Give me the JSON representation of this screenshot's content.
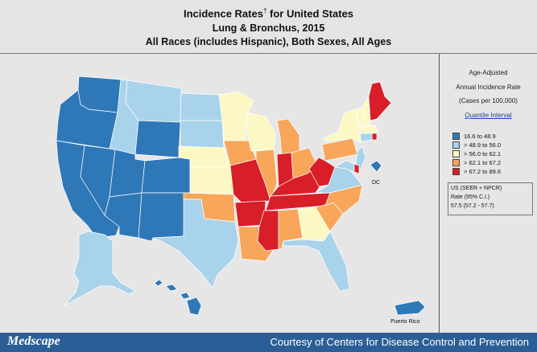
{
  "header": {
    "title_main": "Incidence Rates",
    "title_mark": "†",
    "title_tail": " for United States",
    "subtitle1": "Lung & Bronchus, 2015",
    "subtitle2": "All Races (includes Hispanic), Both Sexes, All Ages"
  },
  "legend": {
    "line1": "Age-Adjusted",
    "line2": "Annual Incidence Rate",
    "line3": "(Cases per 100,000)",
    "link": "Quantile Interval",
    "items": [
      {
        "label": "16.6  to  48.9",
        "color": "#2f78b8"
      },
      {
        "label": "> 48.9  to  56.0",
        "color": "#a9d3ea"
      },
      {
        "label": "> 56.0  to  62.1",
        "color": "#fcf8c4"
      },
      {
        "label": "> 62.1  to  67.2",
        "color": "#f7a65a"
      },
      {
        "label": "> 67.2  to  89.6",
        "color": "#d81e28"
      }
    ],
    "us_line1": "US (SEER + NPCR)",
    "us_line2": "Rate (95% C.I.)",
    "us_line3": "57.5    (57.2 - 57.7)"
  },
  "map": {
    "dc_label": "DC",
    "pr_label": "Puerto Rico",
    "states": [
      {
        "id": "WA",
        "cls": 0
      },
      {
        "id": "OR",
        "cls": 0
      },
      {
        "id": "CA",
        "cls": 0
      },
      {
        "id": "NV",
        "cls": 0
      },
      {
        "id": "ID",
        "cls": 1
      },
      {
        "id": "MT",
        "cls": 1
      },
      {
        "id": "WY",
        "cls": 0
      },
      {
        "id": "UT",
        "cls": 0
      },
      {
        "id": "AZ",
        "cls": 0
      },
      {
        "id": "CO",
        "cls": 0
      },
      {
        "id": "NM",
        "cls": 0
      },
      {
        "id": "ND",
        "cls": 1
      },
      {
        "id": "SD",
        "cls": 1
      },
      {
        "id": "NE",
        "cls": 2
      },
      {
        "id": "KS",
        "cls": 2
      },
      {
        "id": "OK",
        "cls": 3
      },
      {
        "id": "TX",
        "cls": 1
      },
      {
        "id": "MN",
        "cls": 2
      },
      {
        "id": "IA",
        "cls": 3
      },
      {
        "id": "MO",
        "cls": 4
      },
      {
        "id": "AR",
        "cls": 4
      },
      {
        "id": "LA",
        "cls": 3
      },
      {
        "id": "WI",
        "cls": 2
      },
      {
        "id": "IL",
        "cls": 3
      },
      {
        "id": "MS",
        "cls": 4
      },
      {
        "id": "MI",
        "cls": 3
      },
      {
        "id": "IN",
        "cls": 4
      },
      {
        "id": "KY",
        "cls": 4
      },
      {
        "id": "TN",
        "cls": 4
      },
      {
        "id": "AL",
        "cls": 3
      },
      {
        "id": "OH",
        "cls": 3
      },
      {
        "id": "WV",
        "cls": 4
      },
      {
        "id": "GA",
        "cls": 2
      },
      {
        "id": "FL",
        "cls": 1
      },
      {
        "id": "SC",
        "cls": 3
      },
      {
        "id": "NC",
        "cls": 3
      },
      {
        "id": "VA",
        "cls": 1
      },
      {
        "id": "PA",
        "cls": 3
      },
      {
        "id": "NY",
        "cls": 2
      },
      {
        "id": "VT",
        "cls": 2
      },
      {
        "id": "NH",
        "cls": 2
      },
      {
        "id": "ME",
        "cls": 4
      },
      {
        "id": "MA",
        "cls": 2
      },
      {
        "id": "RI",
        "cls": 4
      },
      {
        "id": "CT",
        "cls": 1
      },
      {
        "id": "NJ",
        "cls": 1
      },
      {
        "id": "DE",
        "cls": 4
      },
      {
        "id": "MD",
        "cls": 1
      },
      {
        "id": "DC",
        "cls": 0
      },
      {
        "id": "AK",
        "cls": 1
      },
      {
        "id": "HI",
        "cls": 0
      },
      {
        "id": "PR",
        "cls": 0
      }
    ]
  },
  "footer": {
    "logo": "Medscape",
    "credit": "Courtesy of Centers for Disease Control and Prevention"
  }
}
